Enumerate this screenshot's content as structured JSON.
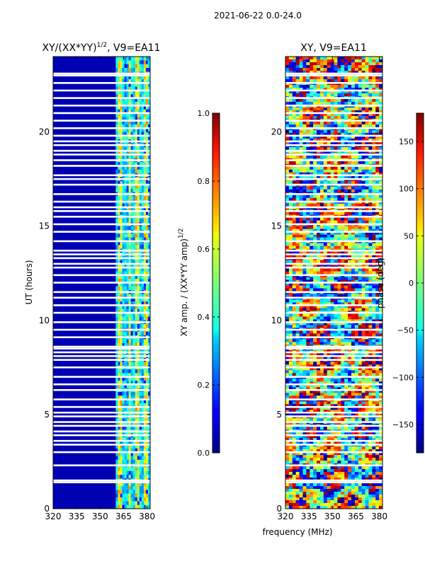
{
  "figure_title": "2021-06-22 0.0-24.0",
  "chart_data": [
    {
      "type": "heatmap",
      "title": "XY/(XX*YY)",
      "title_sup": "1/2",
      "title_suffix": ", V9=EA11",
      "xlabel": "",
      "ylabel": "UT (hours)",
      "xlim": [
        320,
        382
      ],
      "ylim": [
        0,
        24
      ],
      "xticks": [
        320,
        335,
        350,
        365,
        380
      ],
      "yticks": [
        0,
        5,
        10,
        15,
        20
      ],
      "colormap": "jet",
      "background_value": 0.05,
      "band_range_mhz": [
        360,
        382
      ],
      "bright_channels_mhz": [
        363,
        369,
        374,
        379
      ],
      "colorbar": {
        "label": "XY amp. / (XX*YY amp)",
        "label_sup": "1/2",
        "range": [
          0.0,
          1.0
        ],
        "ticks": [
          "0.0",
          "0.2",
          "0.4",
          "0.6",
          "0.8",
          "1.0"
        ]
      },
      "flagged_hours": [
        1.4,
        1.5,
        2.3,
        3.0,
        3.4,
        3.6,
        3.9,
        4.1,
        4.4,
        4.6,
        4.9,
        5.1,
        5.4,
        5.8,
        6.3,
        6.6,
        7.0,
        7.5,
        7.9,
        8.1,
        8.3,
        8.5,
        8.6,
        9.1,
        9.5,
        9.9,
        10.4,
        10.8,
        11.2,
        11.5,
        12.0,
        12.4,
        12.8,
        13.0,
        13.3,
        13.5,
        13.7,
        14.2,
        14.7,
        15.1,
        15.5,
        15.8,
        16.0,
        16.3,
        16.7,
        17.2,
        17.5,
        17.7,
        18.2,
        18.5,
        18.8,
        19.0,
        19.3,
        19.5,
        19.8,
        20.2,
        20.6,
        21.0,
        21.4,
        21.8,
        22.2,
        22.6,
        23.0,
        23.1
      ]
    },
    {
      "type": "heatmap",
      "title": "XY, V9=EA11",
      "xlabel": "frequency (MHz)",
      "ylabel": "",
      "xlim": [
        320,
        382
      ],
      "ylim": [
        0,
        24
      ],
      "xticks": [
        320,
        335,
        350,
        365,
        380
      ],
      "yticks": [
        0,
        5,
        10,
        15,
        20
      ],
      "colormap": "jet",
      "colorbar": {
        "label": "phase (deg)",
        "range": [
          -180,
          180
        ],
        "ticks": [
          "−150",
          "−100",
          "−50",
          "0",
          "50",
          "100",
          "150"
        ]
      },
      "flagged_hours": [
        1.4,
        1.5,
        2.3,
        3.0,
        3.4,
        3.6,
        3.9,
        4.1,
        4.4,
        4.6,
        4.9,
        5.1,
        5.4,
        5.8,
        6.3,
        6.6,
        7.0,
        7.5,
        7.9,
        8.1,
        8.3,
        8.5,
        8.6,
        9.1,
        9.5,
        9.9,
        10.4,
        10.8,
        11.2,
        11.5,
        12.0,
        12.4,
        12.8,
        13.0,
        13.3,
        13.5,
        13.7,
        14.2,
        14.7,
        15.1,
        15.5,
        15.8,
        16.0,
        16.3,
        16.7,
        17.2,
        17.5,
        17.7,
        18.2,
        18.5,
        18.8,
        19.0,
        19.3,
        19.5,
        19.8,
        20.2,
        20.6,
        21.0,
        21.4,
        21.8,
        22.2,
        22.6,
        23.0,
        23.1
      ]
    }
  ]
}
